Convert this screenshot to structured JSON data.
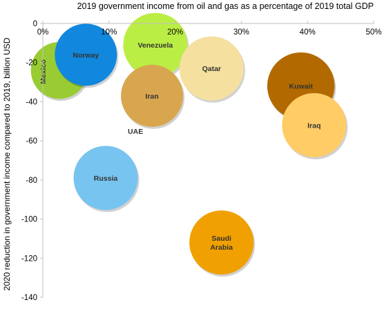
{
  "chart_data": {
    "type": "bubble",
    "title": "2019 government income from oil and gas as a percentage of 2019 total GDP",
    "xlabel": "",
    "ylabel": "2020 reduction in government income compared to 2019, billion USD",
    "xlim": [
      0,
      50
    ],
    "ylim": [
      -140,
      0
    ],
    "x_ticks": [
      "0%",
      "10%",
      "20%",
      "30%",
      "40%",
      "50%"
    ],
    "y_ticks": [
      "0",
      "-20",
      "-40",
      "-60",
      "-80",
      "-100",
      "-120",
      "-140"
    ],
    "x_axis_position": "top",
    "grid": false,
    "legend": "none",
    "points": [
      {
        "name": "Mexico",
        "x": 2.5,
        "y": -24,
        "r": 0.55,
        "color": "#99cc33",
        "label_rotated": true
      },
      {
        "name": "Norway",
        "x": 6.5,
        "y": -16,
        "r": 0.6,
        "color": "#1188dd"
      },
      {
        "name": "Venezuela",
        "x": 17,
        "y": -11,
        "r": 0.62,
        "color": "#bbee44"
      },
      {
        "name": "Qatar",
        "x": 25.5,
        "y": -23,
        "r": 0.62,
        "color": "#f5e0a0"
      },
      {
        "name": "Iran",
        "x": 16.5,
        "y": -37,
        "r": 0.6,
        "color": "#d9a650"
      },
      {
        "name": "UAE",
        "x": 14,
        "y": -55,
        "r": 0,
        "color": "#000000"
      },
      {
        "name": "Kuwait",
        "x": 39,
        "y": -32,
        "r": 0.65,
        "color": "#b26a00"
      },
      {
        "name": "Iraq",
        "x": 41,
        "y": -52,
        "r": 0.62,
        "color": "#ffcc66"
      },
      {
        "name": "Russia",
        "x": 9.5,
        "y": -79,
        "r": 0.62,
        "color": "#77c4f0"
      },
      {
        "name": "Saudi Arabia",
        "x": 27,
        "y": -112,
        "r": 0.62,
        "color": "#f0a000",
        "label_lines": [
          "Saudi",
          "Arabia"
        ]
      }
    ]
  }
}
